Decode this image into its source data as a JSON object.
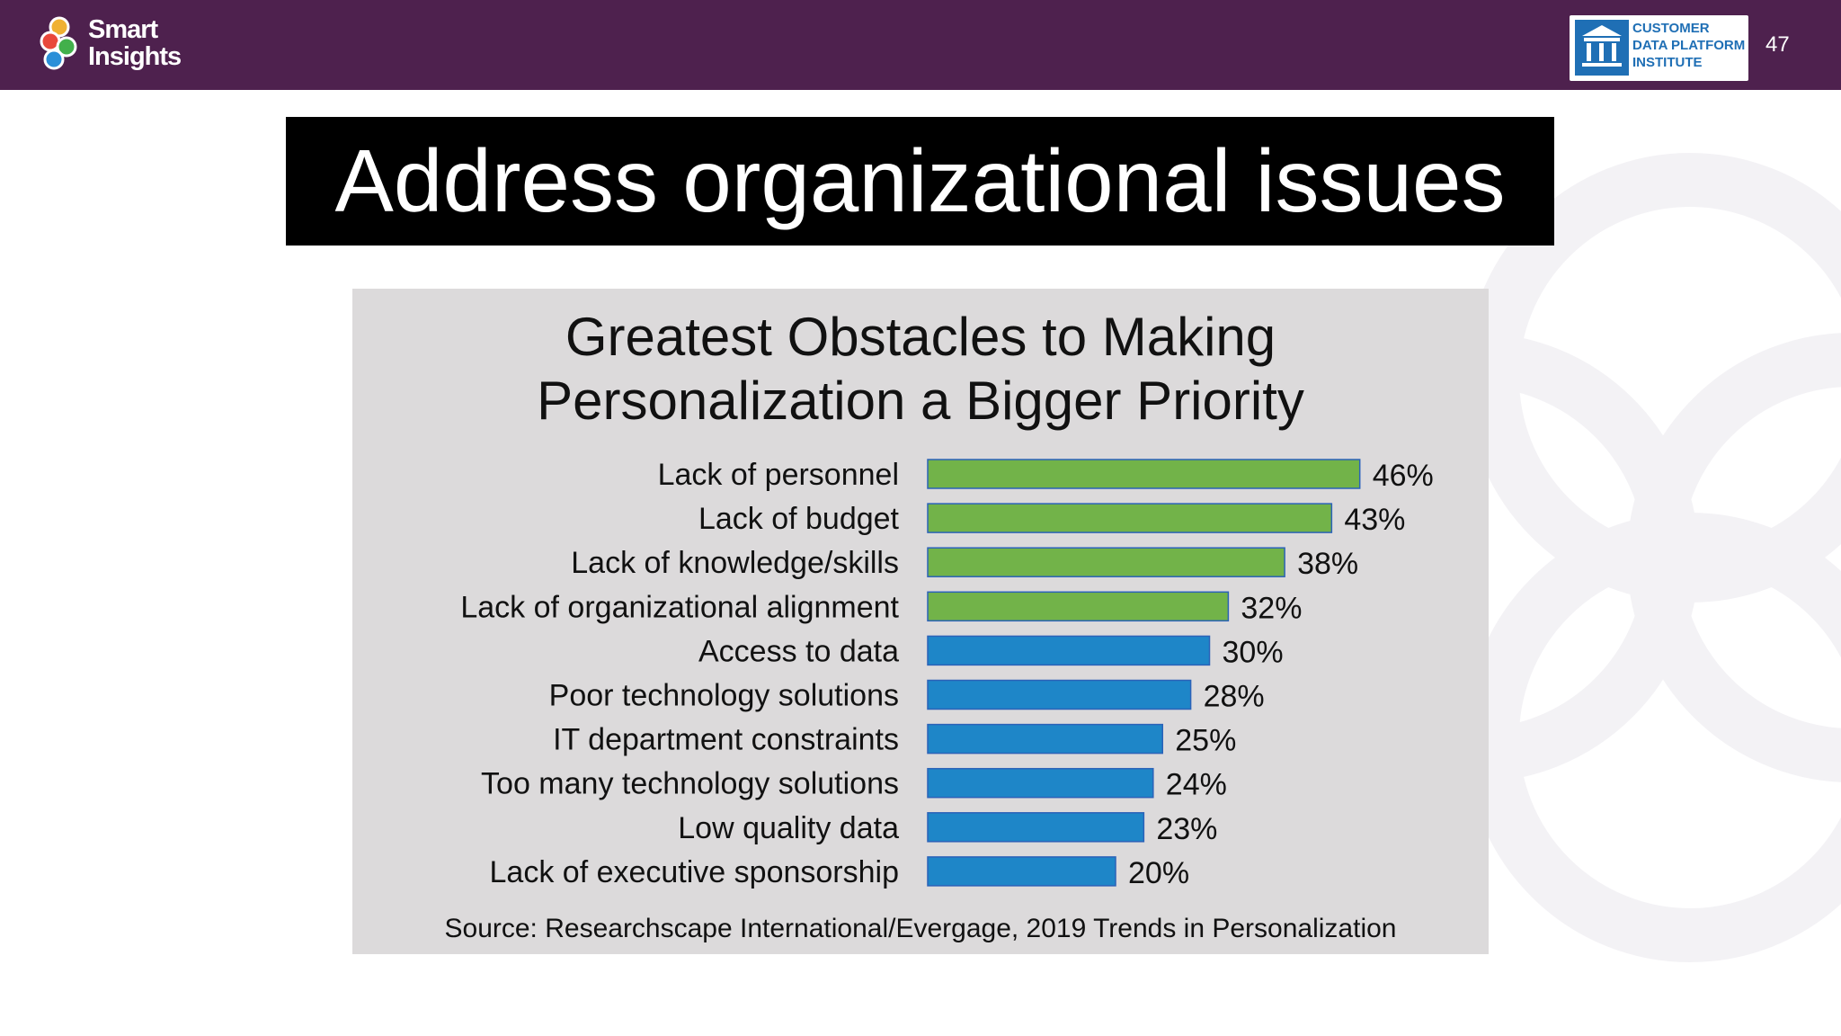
{
  "header": {
    "logo": {
      "line1": "Smart",
      "line2": "Insights"
    },
    "partner_badge": {
      "line1": "CUSTOMER",
      "line2": "DATA PLATFORM",
      "line3": "INSTITUTE"
    },
    "slide_number": "47"
  },
  "slide": {
    "title": "Address organizational issues"
  },
  "chart_data": {
    "type": "bar",
    "orientation": "horizontal",
    "title": [
      "Greatest Obstacles to Making",
      "Personalization a Bigger Priority"
    ],
    "categories": [
      "Lack of personnel",
      "Lack of budget",
      "Lack of knowledge/skills",
      "Lack of organizational alignment",
      "Access to data",
      "Poor technology solutions",
      "IT department constraints",
      "Too many technology solutions",
      "Low quality data",
      "Lack of executive sponsorship"
    ],
    "values": [
      46,
      43,
      38,
      32,
      30,
      28,
      25,
      24,
      23,
      20
    ],
    "value_labels": [
      "46%",
      "43%",
      "38%",
      "32%",
      "30%",
      "28%",
      "25%",
      "24%",
      "23%",
      "20%"
    ],
    "bar_colors": [
      "#72b349",
      "#72b349",
      "#72b349",
      "#72b349",
      "#1e86c8",
      "#1e86c8",
      "#1e86c8",
      "#1e86c8",
      "#1e86c8",
      "#1e86c8"
    ],
    "source": "Source: Researchscape International/Evergage, 2019 Trends in Personalization",
    "grid": false,
    "legend": "none"
  },
  "colors": {
    "header_bg": "#4e214e",
    "title_bg": "#000000",
    "panel_bg": "#dcdadb",
    "bar_green": "#72b349",
    "bar_blue": "#1e86c8",
    "bar_outline": "#2b62b8"
  },
  "icons": [
    "smart-insights-logo-icon",
    "cdp-institute-emblem-icon"
  ]
}
